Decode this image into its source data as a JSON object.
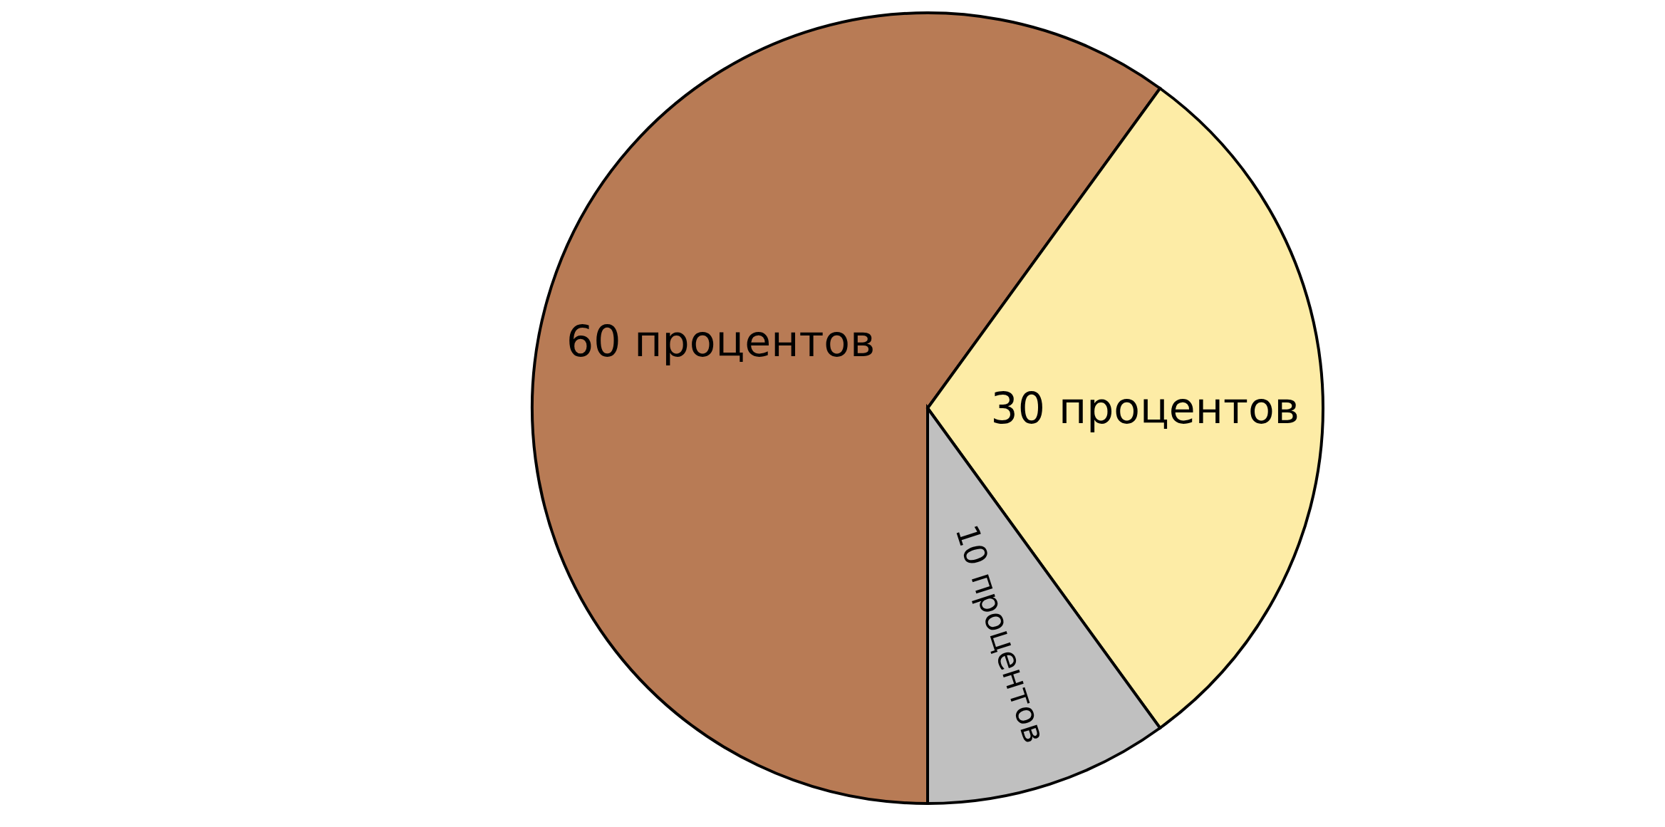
{
  "chart_data": {
    "type": "pie",
    "categories": [
      null,
      null,
      null
    ],
    "values": [
      60,
      30,
      10
    ],
    "colors": [
      "#b87b55",
      "#fdeca6",
      "#c0c0c0"
    ],
    "value_labels": [
      "60 процентов",
      "30 процентов",
      "10 процентов"
    ]
  }
}
